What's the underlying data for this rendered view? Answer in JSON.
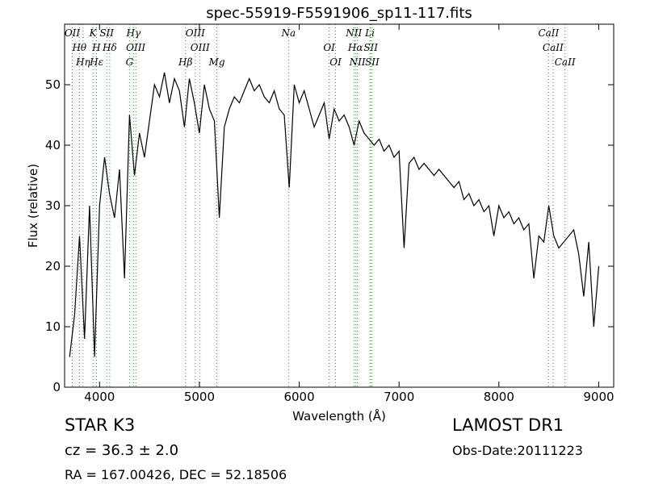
{
  "chart_data": {
    "type": "line",
    "title": "spec-55919-F5591906_sp11-117.fits",
    "x_label": "Wavelength (Å)",
    "y_label": "Flux (relative)",
    "xlim": [
      3650,
      9150
    ],
    "ylim": [
      0,
      60
    ],
    "xticks": [
      4000,
      5000,
      6000,
      7000,
      8000,
      9000
    ],
    "yticks": [
      0,
      10,
      20,
      30,
      40,
      50
    ],
    "color": "#000000",
    "line_color": "#2ca02c",
    "x": [
      3700,
      3750,
      3800,
      3850,
      3900,
      3950,
      4000,
      4050,
      4100,
      4150,
      4200,
      4250,
      4300,
      4350,
      4400,
      4450,
      4500,
      4550,
      4600,
      4650,
      4700,
      4750,
      4800,
      4850,
      4900,
      4950,
      5000,
      5050,
      5100,
      5150,
      5200,
      5250,
      5300,
      5350,
      5400,
      5450,
      5500,
      5550,
      5600,
      5650,
      5700,
      5750,
      5800,
      5850,
      5900,
      5950,
      6000,
      6050,
      6100,
      6150,
      6200,
      6250,
      6300,
      6350,
      6400,
      6450,
      6500,
      6550,
      6600,
      6650,
      6700,
      6750,
      6800,
      6850,
      6900,
      6950,
      7000,
      7050,
      7100,
      7150,
      7200,
      7250,
      7300,
      7350,
      7400,
      7450,
      7500,
      7550,
      7600,
      7650,
      7700,
      7750,
      7800,
      7850,
      7900,
      7950,
      8000,
      8050,
      8100,
      8150,
      8200,
      8250,
      8300,
      8350,
      8400,
      8450,
      8500,
      8550,
      8600,
      8650,
      8700,
      8750,
      8800,
      8850,
      8900,
      8950,
      9000
    ],
    "values": [
      5,
      12,
      25,
      8,
      30,
      5,
      30,
      38,
      32,
      28,
      36,
      18,
      45,
      35,
      42,
      38,
      44,
      50,
      48,
      52,
      47,
      51,
      49,
      43,
      51,
      47,
      42,
      50,
      46,
      44,
      28,
      43,
      46,
      48,
      47,
      49,
      51,
      49,
      50,
      48,
      47,
      49,
      46,
      45,
      33,
      50,
      47,
      49,
      46,
      43,
      45,
      47,
      41,
      46,
      44,
      45,
      43,
      40,
      44,
      42,
      41,
      40,
      41,
      39,
      40,
      38,
      39,
      23,
      37,
      38,
      36,
      37,
      36,
      35,
      36,
      35,
      34,
      33,
      34,
      31,
      32,
      30,
      31,
      29,
      30,
      25,
      30,
      28,
      29,
      27,
      28,
      26,
      27,
      18,
      25,
      24,
      30,
      25,
      23,
      24,
      25,
      26,
      22,
      15,
      24,
      10,
      20
    ],
    "lines": [
      {
        "name": "OII",
        "wavelength": 3727
      },
      {
        "name": "Hθ",
        "wavelength": 3798
      },
      {
        "name": "Hη",
        "wavelength": 3835
      },
      {
        "name": "K",
        "wavelength": 3934
      },
      {
        "name": "H",
        "wavelength": 3968
      },
      {
        "name": "Hε",
        "wavelength": 3970
      },
      {
        "name": "SII",
        "wavelength": 4072
      },
      {
        "name": "Hδ",
        "wavelength": 4102
      },
      {
        "name": "G",
        "wavelength": 4300
      },
      {
        "name": "Hγ",
        "wavelength": 4340
      },
      {
        "name": "OIII",
        "wavelength": 4363
      },
      {
        "name": "Hβ",
        "wavelength": 4861
      },
      {
        "name": "OIII",
        "wavelength": 4959
      },
      {
        "name": "OIII",
        "wavelength": 5007
      },
      {
        "name": "Mg",
        "wavelength": 5175
      },
      {
        "name": "Na",
        "wavelength": 5893
      },
      {
        "name": "OI",
        "wavelength": 6300
      },
      {
        "name": "OI",
        "wavelength": 6364
      },
      {
        "name": "NII",
        "wavelength": 6548
      },
      {
        "name": "Hα",
        "wavelength": 6563
      },
      {
        "name": "NII",
        "wavelength": 6583
      },
      {
        "name": "Li",
        "wavelength": 6708
      },
      {
        "name": "SII",
        "wavelength": 6717
      },
      {
        "name": "SII",
        "wavelength": 6731
      },
      {
        "name": "CaII",
        "wavelength": 8498
      },
      {
        "name": "CaII",
        "wavelength": 8542
      },
      {
        "name": "CaII",
        "wavelength": 8662
      }
    ],
    "info": {
      "object": "STAR   K3",
      "survey": "LAMOST DR1",
      "redshift": "cz = 36.3 ± 2.0",
      "obs_date": "Obs-Date:20111223",
      "coords": "RA = 167.00426, DEC = 52.18506"
    }
  }
}
